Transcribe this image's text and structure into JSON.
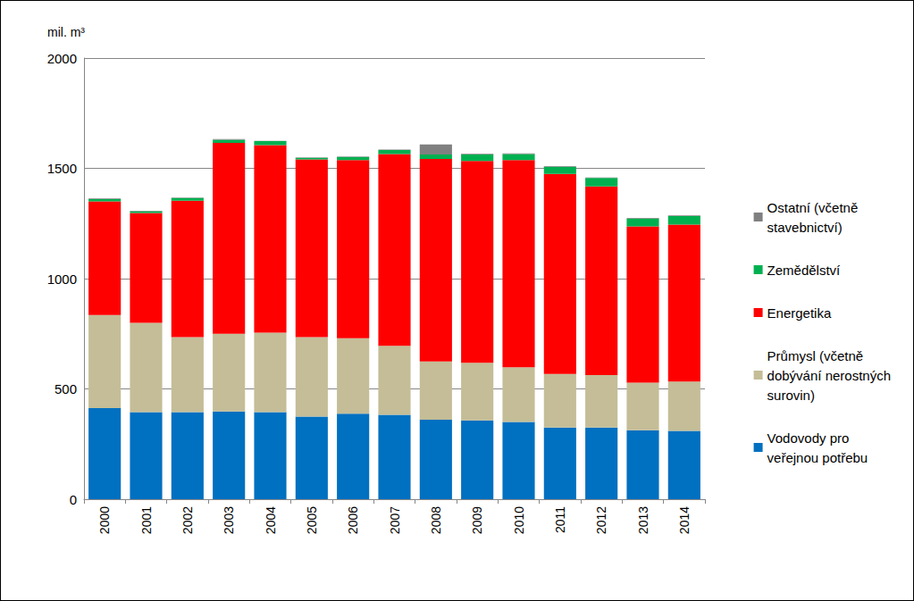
{
  "chart_data": {
    "type": "bar",
    "stacked": true,
    "y_label": "mil. m³",
    "categories": [
      "2000",
      "2001",
      "2002",
      "2003",
      "2004",
      "2005",
      "2006",
      "2007",
      "2008",
      "2009",
      "2010",
      "2011",
      "2012",
      "2013",
      "2014"
    ],
    "series": [
      {
        "name": "Vodovody pro\nveřejnou potřebu",
        "color": "#0070c0",
        "values": [
          413,
          395,
          395,
          398,
          395,
          375,
          388,
          383,
          360,
          357,
          350,
          325,
          325,
          313,
          310
        ]
      },
      {
        "name": "Průmysl (včetně\ndobývání nerostných\nsurovin)",
        "color": "#c4bd97",
        "values": [
          422,
          405,
          340,
          352,
          360,
          360,
          342,
          312,
          265,
          261,
          248,
          243,
          238,
          215,
          223
        ]
      },
      {
        "name": "Energetika",
        "color": "#ff0000",
        "values": [
          515,
          498,
          618,
          865,
          850,
          805,
          807,
          870,
          918,
          915,
          939,
          907,
          855,
          709,
          712
        ]
      },
      {
        "name": "Zemědělství",
        "color": "#00b050",
        "values": [
          10,
          8,
          12,
          15,
          18,
          8,
          15,
          18,
          20,
          30,
          28,
          32,
          38,
          35,
          38
        ]
      },
      {
        "name": "Ostatní (včetně\nstavebnictví)",
        "color": "#808080",
        "values": [
          3,
          2,
          2,
          3,
          2,
          2,
          2,
          2,
          45,
          3,
          3,
          3,
          3,
          3,
          3
        ]
      }
    ],
    "ylim": [
      0,
      2000
    ],
    "yticks": [
      0,
      500,
      1000,
      1500,
      2000
    ],
    "grid": true,
    "legend": "right"
  }
}
